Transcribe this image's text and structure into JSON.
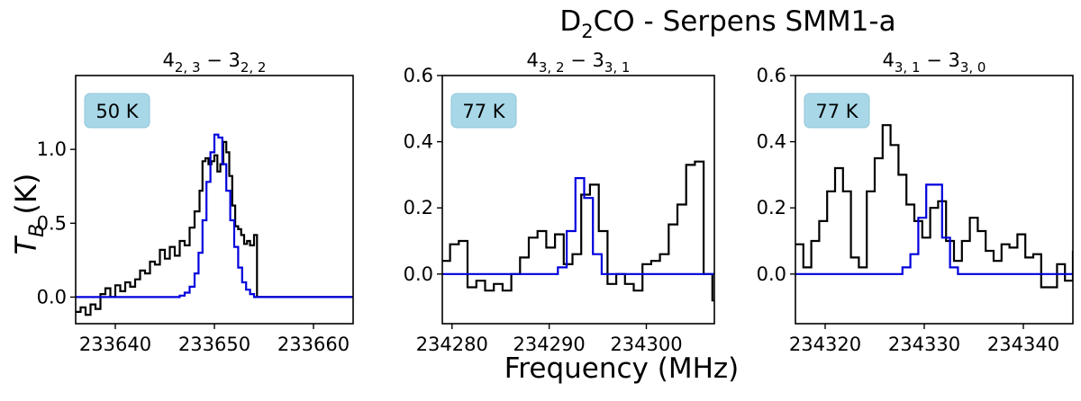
{
  "figure": {
    "title_prefix": "D",
    "title_sub": "2",
    "title_suffix": "CO - Serpens SMM1-a",
    "xlabel": "Frequency (MHz)",
    "ylabel_main": "T",
    "ylabel_sub": "B",
    "ylabel_unit": "(K)"
  },
  "chart_data": [
    {
      "type": "line",
      "transition": {
        "j": "4",
        "up": "2, 3",
        "j2": "3",
        "low": "2, 2"
      },
      "badge": "50 K",
      "xlim": [
        233636,
        233664
      ],
      "ylim": [
        -0.18,
        1.5
      ],
      "xticks": [
        233640,
        233650,
        233660
      ],
      "yticks": [
        0.0,
        0.5,
        1.0
      ],
      "ytick_labels": [
        "0.0",
        "0.5",
        "1.0"
      ],
      "series": [
        {
          "color": "#000000",
          "step": true,
          "x": [
            233636.0,
            233636.5,
            233637.0,
            233637.5,
            233638.0,
            233638.5,
            233639.0,
            233639.5,
            233640.0,
            233640.5,
            233641.0,
            233641.5,
            233642.0,
            233642.5,
            233643.0,
            233643.5,
            233644.0,
            233644.5,
            233645.0,
            233645.5,
            233646.0,
            233646.5,
            233647.0,
            233647.5,
            233648.0,
            233648.5,
            233648.8,
            233649.1,
            233649.4,
            233649.7,
            233650.0,
            233650.3,
            233650.6,
            233650.9,
            233651.2,
            233651.5,
            233651.8,
            233652.1,
            233652.4,
            233652.7,
            233653.0,
            233653.3,
            233653.6,
            233654.0,
            233654.3,
            233655.0,
            233664.0
          ],
          "y": [
            -0.1,
            -0.07,
            -0.12,
            -0.05,
            -0.08,
            0.02,
            0.06,
            0.0,
            0.08,
            0.04,
            0.1,
            0.07,
            0.12,
            0.18,
            0.16,
            0.24,
            0.22,
            0.32,
            0.26,
            0.34,
            0.28,
            0.38,
            0.35,
            0.47,
            0.58,
            0.72,
            0.92,
            0.94,
            0.9,
            0.92,
            0.96,
            0.85,
            0.9,
            1.05,
            0.98,
            0.82,
            0.62,
            0.48,
            0.46,
            0.42,
            0.36,
            0.38,
            0.35,
            0.42,
            0.0,
            0.0,
            0.0
          ]
        },
        {
          "color": "#0000dd",
          "step": true,
          "x": [
            233636.0,
            233646.0,
            233646.5,
            233647.0,
            233647.5,
            233648.0,
            233648.4,
            233648.8,
            233649.2,
            233649.6,
            233650.0,
            233650.4,
            233650.8,
            233651.2,
            233651.6,
            233652.0,
            233652.4,
            233652.8,
            233653.2,
            233653.6,
            233654.0,
            233664.0
          ],
          "y": [
            0.0,
            0.0,
            0.01,
            0.03,
            0.07,
            0.16,
            0.3,
            0.52,
            0.78,
            0.98,
            1.1,
            1.08,
            0.9,
            0.72,
            0.52,
            0.34,
            0.2,
            0.1,
            0.05,
            0.02,
            0.0,
            0.0
          ]
        }
      ]
    },
    {
      "type": "line",
      "transition": {
        "j": "4",
        "up": "3, 2",
        "j2": "3",
        "low": "3, 1"
      },
      "badge": "77 K",
      "xlim": [
        234279,
        234307
      ],
      "ylim": [
        -0.15,
        0.6
      ],
      "xticks": [
        234280,
        234290,
        234300
      ],
      "yticks": [
        0.0,
        0.2,
        0.4,
        0.6
      ],
      "ytick_labels": [
        "0.0",
        "0.2",
        "0.4",
        "0.6"
      ],
      "series": [
        {
          "color": "#000000",
          "step": true,
          "x": [
            234279.0,
            234279.8,
            234280.7,
            234281.6,
            234282.5,
            234283.4,
            234284.3,
            234285.2,
            234286.1,
            234287.0,
            234287.9,
            234288.8,
            234289.7,
            234290.6,
            234291.5,
            234292.4,
            234293.3,
            234294.2,
            234295.1,
            234296.0,
            234296.9,
            234297.8,
            234298.7,
            234299.6,
            234300.5,
            234301.4,
            234302.3,
            234303.2,
            234304.1,
            234305.0,
            234305.9,
            234306.8,
            234307.0
          ],
          "y": [
            0.04,
            0.09,
            0.1,
            -0.04,
            -0.02,
            -0.05,
            -0.03,
            -0.05,
            0.0,
            0.05,
            0.11,
            0.13,
            0.08,
            0.12,
            0.03,
            0.06,
            0.24,
            0.27,
            0.13,
            -0.03,
            0.0,
            -0.03,
            -0.05,
            0.03,
            0.04,
            0.06,
            0.15,
            0.21,
            0.33,
            0.34,
            0.0,
            -0.08,
            -0.08
          ]
        },
        {
          "color": "#0000dd",
          "step": true,
          "x": [
            234279.0,
            234290.0,
            234290.9,
            234291.8,
            234292.7,
            234293.6,
            234294.5,
            234295.4,
            234307.0
          ],
          "y": [
            0.0,
            0.0,
            0.02,
            0.13,
            0.29,
            0.23,
            0.06,
            0.0,
            0.0
          ]
        }
      ]
    },
    {
      "type": "line",
      "transition": {
        "j": "4",
        "up": "3, 1",
        "j2": "3",
        "low": "3, 0"
      },
      "badge": "77 K",
      "xlim": [
        234317,
        234345
      ],
      "ylim": [
        -0.15,
        0.6
      ],
      "xticks": [
        234320,
        234330,
        234340
      ],
      "yticks": [
        0.0,
        0.2,
        0.4,
        0.6
      ],
      "ytick_labels": [
        "0.0",
        "0.2",
        "0.4",
        "0.6"
      ],
      "series": [
        {
          "color": "#000000",
          "step": true,
          "x": [
            234317.0,
            234317.8,
            234318.6,
            234319.4,
            234320.2,
            234321.0,
            234321.8,
            234322.6,
            234323.4,
            234324.2,
            234325.0,
            234325.8,
            234326.6,
            234327.4,
            234328.2,
            234329.0,
            234329.8,
            234330.6,
            234331.4,
            234332.2,
            234333.0,
            234333.8,
            234334.6,
            234335.4,
            234336.2,
            234337.0,
            234337.8,
            234338.6,
            234339.4,
            234340.2,
            234341.0,
            234341.8,
            234342.6,
            234343.4,
            234344.2,
            234345.0
          ],
          "y": [
            0.09,
            0.02,
            0.1,
            0.16,
            0.25,
            0.32,
            0.25,
            0.05,
            0.02,
            0.25,
            0.35,
            0.45,
            0.39,
            0.3,
            0.21,
            0.16,
            0.11,
            0.2,
            0.22,
            0.1,
            0.04,
            0.1,
            0.17,
            0.13,
            0.07,
            0.04,
            0.09,
            0.08,
            0.12,
            0.05,
            0.06,
            -0.04,
            -0.04,
            0.03,
            -0.02,
            0.07
          ]
        },
        {
          "color": "#0000dd",
          "step": true,
          "x": [
            234317.0,
            234327.0,
            234327.8,
            234328.6,
            234329.4,
            234330.2,
            234331.0,
            234331.8,
            234332.6,
            234333.4,
            234345.0
          ],
          "y": [
            0.0,
            0.0,
            0.02,
            0.06,
            0.17,
            0.27,
            0.27,
            0.11,
            0.02,
            0.0,
            0.0
          ]
        }
      ]
    }
  ]
}
